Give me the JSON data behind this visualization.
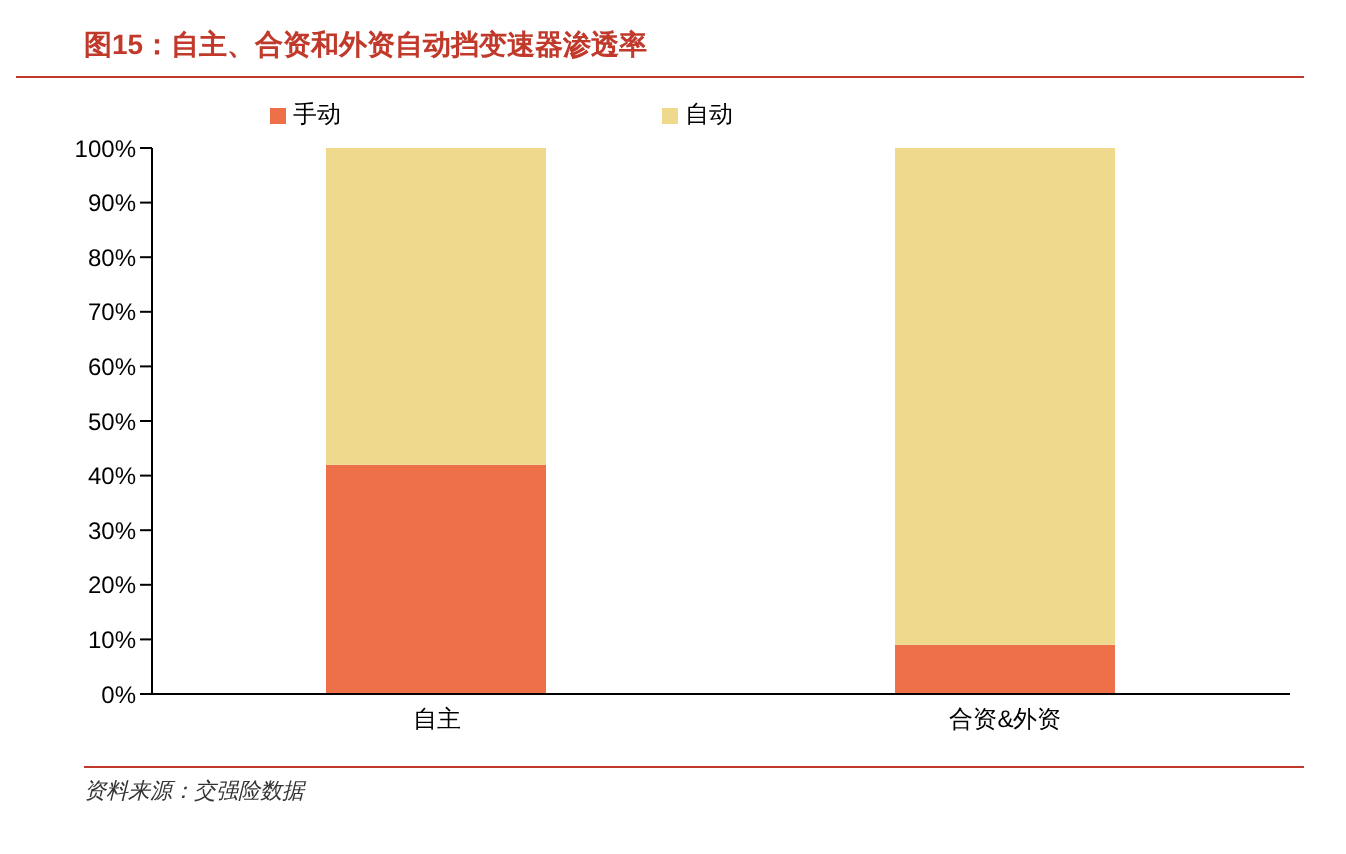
{
  "chart_data": {
    "type": "bar",
    "title": "图15：自主、合资和外资自动挡变速器渗透率",
    "categories": [
      "自主",
      "合资&外资"
    ],
    "series": [
      {
        "name": "手动",
        "color": "#ee7049",
        "values": [
          42,
          9
        ]
      },
      {
        "name": "自动",
        "color": "#efd98c",
        "values": [
          58,
          91
        ]
      }
    ],
    "stacked": true,
    "ylim": [
      0,
      100
    ],
    "yticks": [
      {
        "value": 0,
        "label": "0%"
      },
      {
        "value": 10,
        "label": "10%"
      },
      {
        "value": 20,
        "label": "20%"
      },
      {
        "value": 30,
        "label": "30%"
      },
      {
        "value": 40,
        "label": "40%"
      },
      {
        "value": 50,
        "label": "50%"
      },
      {
        "value": 60,
        "label": "60%"
      },
      {
        "value": 70,
        "label": "70%"
      },
      {
        "value": 80,
        "label": "80%"
      },
      {
        "value": 90,
        "label": "90%"
      },
      {
        "value": 100,
        "label": "100%"
      }
    ],
    "legend": "top",
    "grid": false,
    "annotations": [
      "资料来源：交强险数据"
    ]
  }
}
